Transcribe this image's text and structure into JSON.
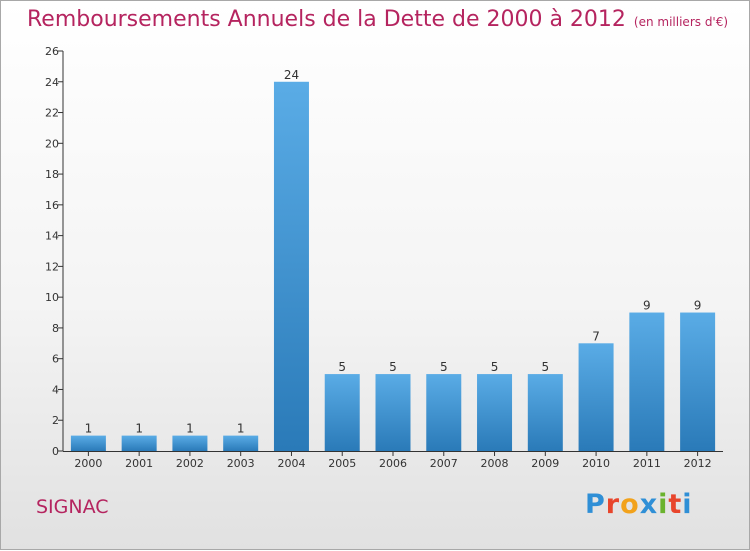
{
  "title": "Remboursements Annuels de la Dette de 2000 à 2012",
  "subtitle": "(en milliers d'€)",
  "town": "SIGNAC",
  "logo": "Proxiti",
  "colors": {
    "title": "#b5245f",
    "bar_top": "#5aace6",
    "bar_bottom": "#2a7ab8",
    "axis": "#333333"
  },
  "chart_data": {
    "type": "bar",
    "categories": [
      "2000",
      "2001",
      "2002",
      "2003",
      "2004",
      "2005",
      "2006",
      "2007",
      "2008",
      "2009",
      "2010",
      "2011",
      "2012"
    ],
    "values": [
      1,
      1,
      1,
      1,
      24,
      5,
      5,
      5,
      5,
      5,
      7,
      9,
      9
    ],
    "ylim": [
      0,
      26
    ],
    "yticks": [
      0,
      2,
      4,
      6,
      8,
      10,
      12,
      14,
      16,
      18,
      20,
      22,
      24,
      26
    ],
    "grid": false,
    "legend": "none"
  }
}
